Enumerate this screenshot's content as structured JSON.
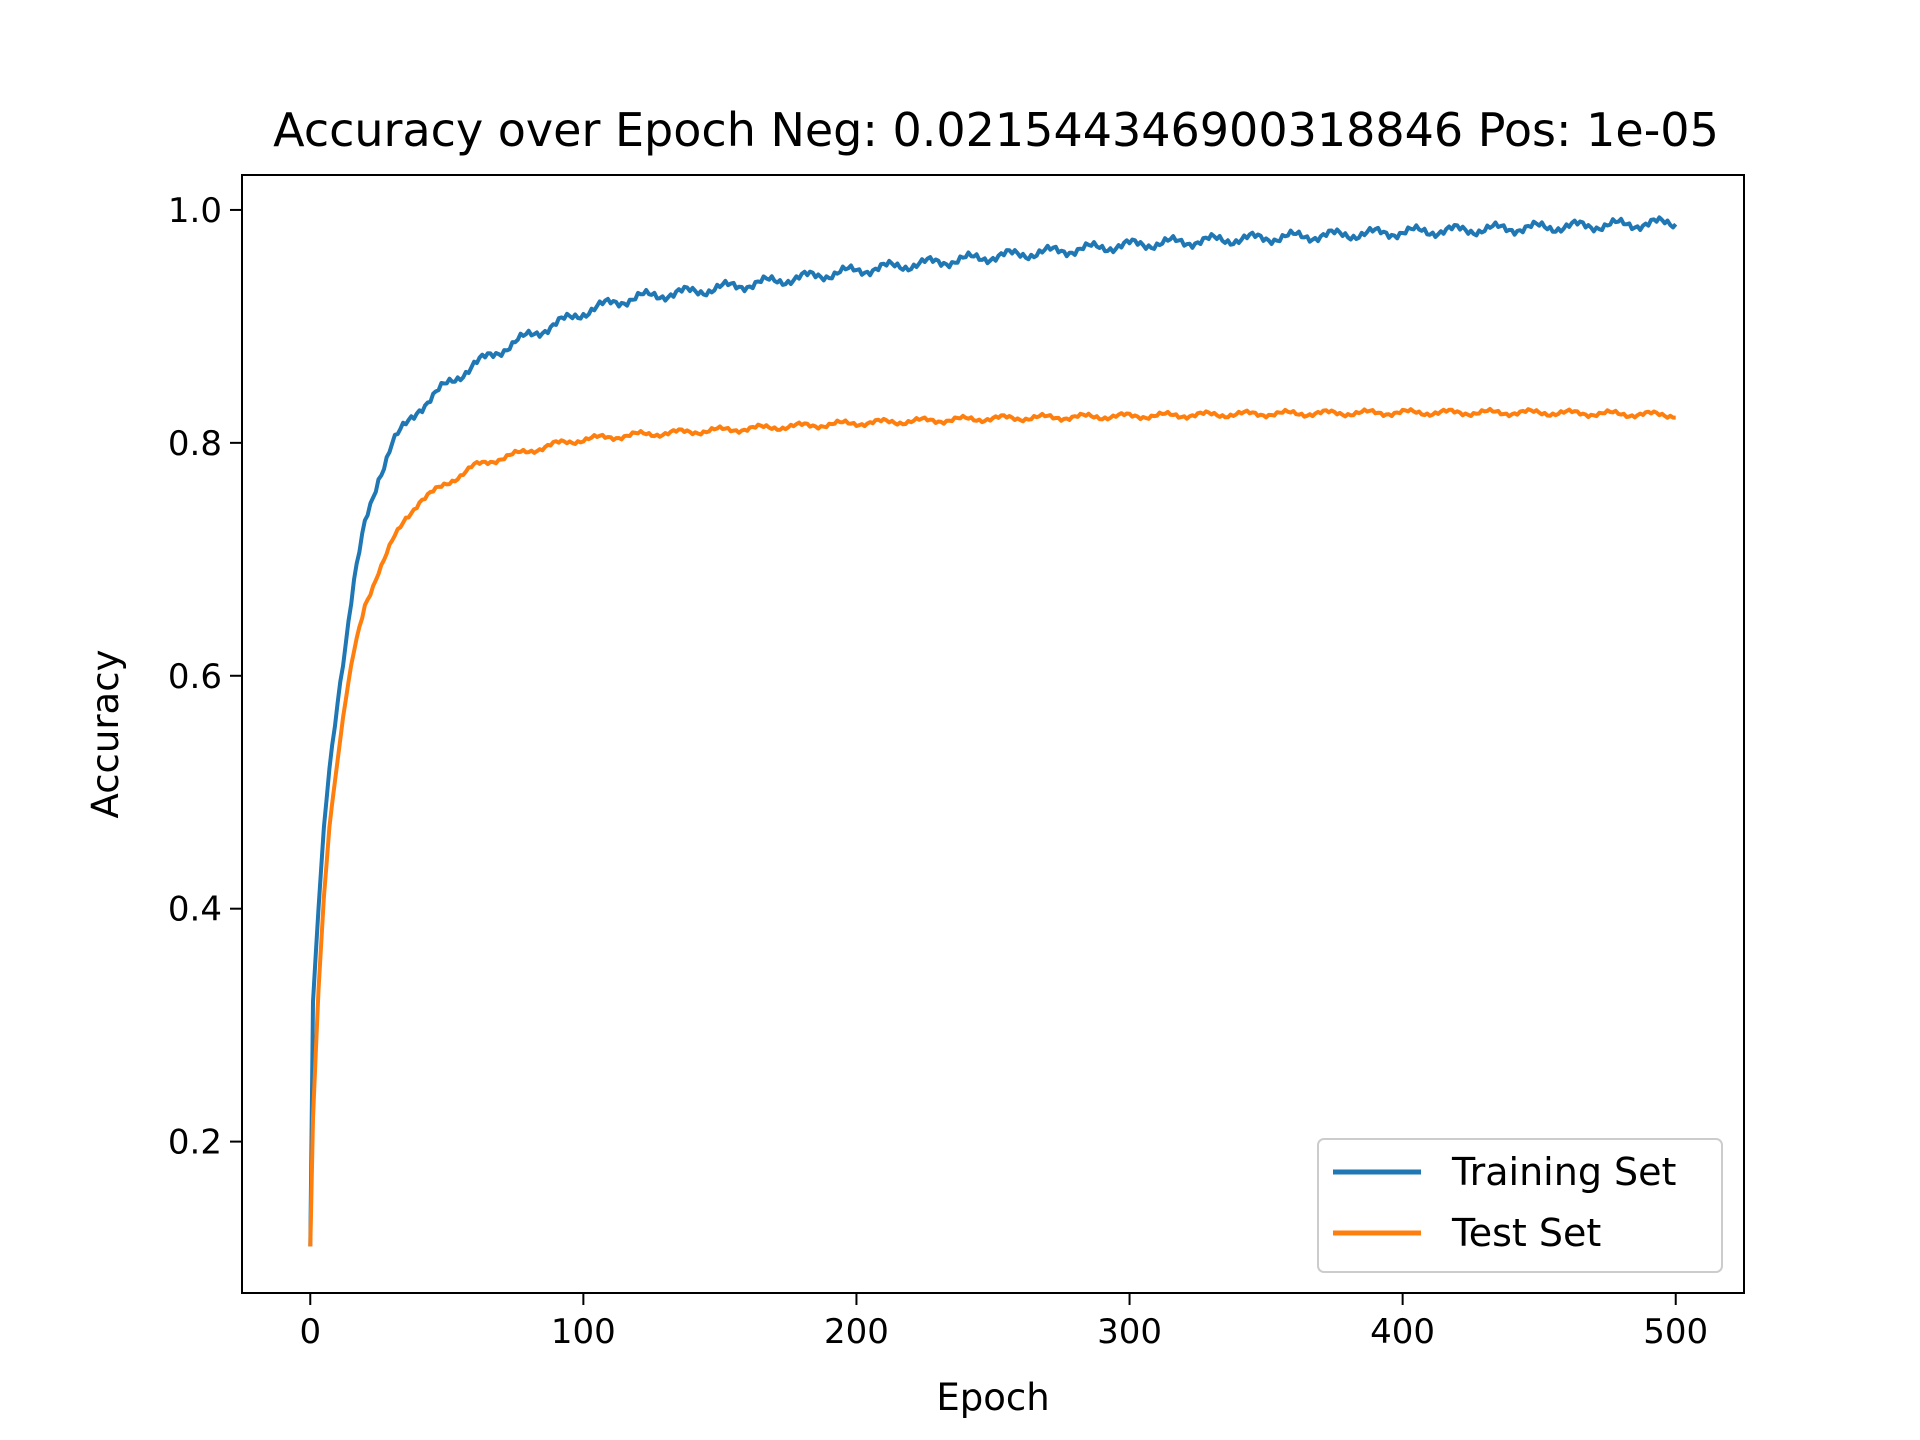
{
  "chart_data": {
    "type": "line",
    "title": "Accuracy over Epoch Neg: 0.021544346900318846 Pos: 1e-05",
    "xlabel": "Epoch",
    "ylabel": "Accuracy",
    "xlim": [
      -25,
      525
    ],
    "ylim": [
      0.07,
      1.03
    ],
    "xticks": [
      0,
      100,
      200,
      300,
      400,
      500
    ],
    "yticks": [
      0.2,
      0.4,
      0.6,
      0.8,
      1.0
    ],
    "xtick_labels": [
      "0",
      "100",
      "200",
      "300",
      "400",
      "500"
    ],
    "ytick_labels": [
      "0.2",
      "0.4",
      "0.6",
      "0.8",
      "1.0"
    ],
    "grid": false,
    "legend": {
      "position": "lower-right"
    },
    "series": [
      {
        "name": "Training Set",
        "color": "#1f77b4",
        "points": [
          [
            0,
            0.11
          ],
          [
            1,
            0.32
          ],
          [
            3,
            0.4
          ],
          [
            5,
            0.47
          ],
          [
            7,
            0.52
          ],
          [
            10,
            0.58
          ],
          [
            13,
            0.63
          ],
          [
            16,
            0.68
          ],
          [
            20,
            0.73
          ],
          [
            25,
            0.77
          ],
          [
            30,
            0.8
          ],
          [
            35,
            0.815
          ],
          [
            40,
            0.83
          ],
          [
            50,
            0.85
          ],
          [
            60,
            0.867
          ],
          [
            70,
            0.88
          ],
          [
            80,
            0.892
          ],
          [
            90,
            0.902
          ],
          [
            100,
            0.912
          ],
          [
            110,
            0.92
          ],
          [
            120,
            0.925
          ],
          [
            140,
            0.93
          ],
          [
            160,
            0.936
          ],
          [
            180,
            0.942
          ],
          [
            200,
            0.948
          ],
          [
            220,
            0.953
          ],
          [
            250,
            0.96
          ],
          [
            280,
            0.966
          ],
          [
            300,
            0.97
          ],
          [
            330,
            0.974
          ],
          [
            360,
            0.977
          ],
          [
            400,
            0.981
          ],
          [
            450,
            0.985
          ],
          [
            500,
            0.989
          ]
        ]
      },
      {
        "name": "Test Set",
        "color": "#ff7f0e",
        "points": [
          [
            0,
            0.11
          ],
          [
            1,
            0.22
          ],
          [
            3,
            0.33
          ],
          [
            5,
            0.41
          ],
          [
            7,
            0.47
          ],
          [
            10,
            0.53
          ],
          [
            13,
            0.58
          ],
          [
            16,
            0.62
          ],
          [
            20,
            0.66
          ],
          [
            25,
            0.69
          ],
          [
            30,
            0.715
          ],
          [
            35,
            0.735
          ],
          [
            40,
            0.75
          ],
          [
            50,
            0.765
          ],
          [
            60,
            0.78
          ],
          [
            70,
            0.787
          ],
          [
            80,
            0.793
          ],
          [
            90,
            0.799
          ],
          [
            100,
            0.803
          ],
          [
            120,
            0.807
          ],
          [
            150,
            0.811
          ],
          [
            200,
            0.817
          ],
          [
            250,
            0.821
          ],
          [
            300,
            0.823
          ],
          [
            350,
            0.825
          ],
          [
            400,
            0.826
          ],
          [
            450,
            0.826
          ],
          [
            500,
            0.824
          ]
        ]
      }
    ]
  }
}
